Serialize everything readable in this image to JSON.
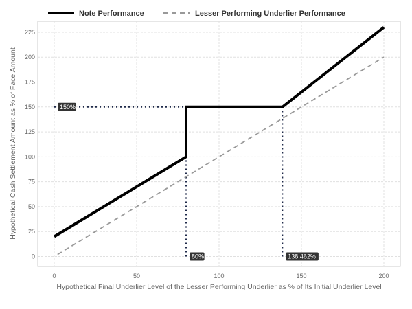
{
  "chart_data": {
    "type": "line",
    "title": "",
    "xlabel": "Hypothetical Final Underlier Level of the Lesser Performing Underlier as % of Its Initial Underlier Level",
    "ylabel": "Hypothetical Cash Settlement Amount as % of Face Amount",
    "xlim": [
      -10,
      210
    ],
    "ylim": [
      -10,
      236
    ],
    "x_ticks": [
      0,
      50,
      100,
      150,
      200
    ],
    "y_ticks": [
      0,
      25,
      50,
      75,
      100,
      125,
      150,
      175,
      200,
      225
    ],
    "grid": true,
    "legend_position": "top",
    "series": [
      {
        "name": "Note Performance",
        "style": "solid",
        "color": "#000000",
        "points": [
          [
            0,
            20
          ],
          [
            80,
            100
          ],
          [
            80,
            150
          ],
          [
            138.462,
            150
          ],
          [
            200,
            230
          ]
        ]
      },
      {
        "name": "Lesser Performing Underlier Performance",
        "style": "dashed",
        "color": "#999999",
        "points": [
          [
            2,
            2
          ],
          [
            200,
            200
          ]
        ]
      }
    ],
    "reference_lines": [
      {
        "from": [
          0,
          150
        ],
        "to": [
          80,
          150
        ]
      },
      {
        "from": [
          80,
          0
        ],
        "to": [
          80,
          100
        ]
      },
      {
        "from": [
          138.462,
          0
        ],
        "to": [
          138.462,
          150
        ]
      }
    ],
    "annotations": [
      {
        "text": "150%",
        "x": 0,
        "y": 150
      },
      {
        "text": "80%",
        "x": 80,
        "y": 0
      },
      {
        "text": "138.462%",
        "x": 138.462,
        "y": 0
      }
    ]
  }
}
